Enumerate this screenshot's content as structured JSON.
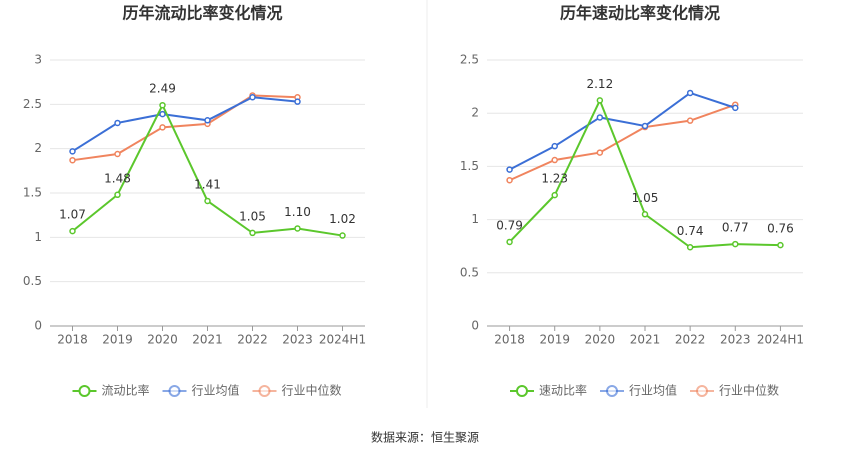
{
  "chart_data": [
    {
      "type": "line",
      "title": "历年流动比率变化情况",
      "categories": [
        "2018",
        "2019",
        "2020",
        "2021",
        "2022",
        "2023",
        "2024H1"
      ],
      "series": [
        {
          "name": "流动比率",
          "color": "#5bc72c",
          "values": [
            1.07,
            1.48,
            2.49,
            1.41,
            1.05,
            1.1,
            1.02
          ],
          "value_labels": [
            "1.07",
            "1.48",
            "2.49",
            "1.41",
            "1.05",
            "1.10",
            "1.02"
          ]
        },
        {
          "name": "行业均值",
          "color": "#3b6fd6",
          "values": [
            1.97,
            2.29,
            2.39,
            2.32,
            2.58,
            2.53,
            null
          ]
        },
        {
          "name": "行业中位数",
          "color": "#f0845e",
          "values": [
            1.87,
            1.94,
            2.24,
            2.28,
            2.6,
            2.58,
            null
          ]
        }
      ],
      "ylim": [
        0,
        3
      ],
      "yticks": [
        0,
        0.5,
        1,
        1.5,
        2,
        2.5,
        3
      ],
      "grid": true
    },
    {
      "type": "line",
      "title": "历年速动比率变化情况",
      "categories": [
        "2018",
        "2019",
        "2020",
        "2021",
        "2022",
        "2023",
        "2024H1"
      ],
      "series": [
        {
          "name": "速动比率",
          "color": "#5bc72c",
          "values": [
            0.79,
            1.23,
            2.12,
            1.05,
            0.74,
            0.77,
            0.76
          ],
          "value_labels": [
            "0.79",
            "1.23",
            "2.12",
            "1.05",
            "0.74",
            "0.77",
            "0.76"
          ]
        },
        {
          "name": "行业均值",
          "color": "#3b6fd6",
          "values": [
            1.47,
            1.69,
            1.96,
            1.88,
            2.19,
            2.05,
            null
          ]
        },
        {
          "name": "行业中位数",
          "color": "#f0845e",
          "values": [
            1.37,
            1.56,
            1.63,
            1.87,
            1.93,
            2.08,
            null
          ]
        }
      ],
      "ylim": [
        0,
        2.5
      ],
      "yticks": [
        0,
        0.5,
        1,
        1.5,
        2,
        2.5
      ],
      "grid": true
    }
  ],
  "source": "数据来源：恒生聚源"
}
